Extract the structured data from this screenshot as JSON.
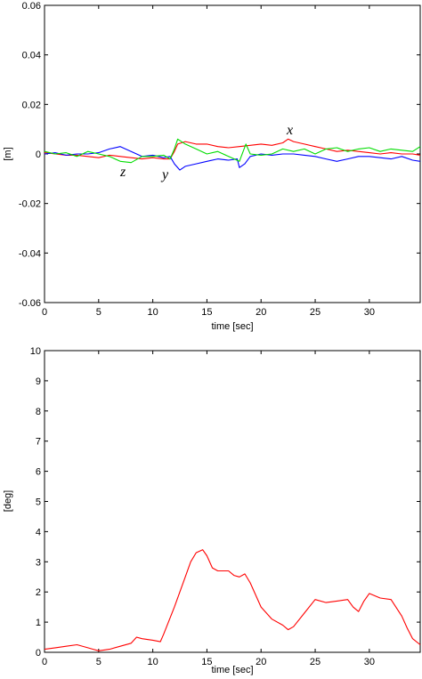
{
  "chart_data": [
    {
      "type": "line",
      "xlabel": "time [sec]",
      "ylabel": "[m]",
      "xlim": [
        0,
        34.7
      ],
      "ylim": [
        -0.06,
        0.06
      ],
      "xticks": [
        0,
        5,
        10,
        15,
        20,
        25,
        30
      ],
      "yticks": [
        -0.06,
        -0.04,
        -0.02,
        0,
        0.02,
        0.04,
        0.06
      ],
      "ytick_labels": [
        "-0.06",
        "-0.04",
        "-0.02",
        "0",
        "0.02",
        "0.04",
        "0.06"
      ],
      "grid": false,
      "legend": "none",
      "series": [
        {
          "name": "x",
          "color": "#ff0000",
          "x": [
            0,
            1,
            2,
            3,
            4,
            5,
            6,
            7,
            8,
            9,
            10,
            11,
            11.6,
            12,
            12.3,
            13,
            14,
            15,
            16,
            17,
            18,
            19,
            20,
            21,
            22,
            22.5,
            23,
            24,
            25,
            26,
            27,
            28,
            29,
            30,
            31,
            32,
            33,
            34,
            34.7
          ],
          "y": [
            0.0005,
            0,
            -0.0005,
            -0.0005,
            -0.001,
            -0.0015,
            -0.0005,
            -0.001,
            -0.0015,
            -0.002,
            -0.0015,
            -0.002,
            -0.002,
            0.001,
            0.004,
            0.005,
            0.004,
            0.004,
            0.003,
            0.0025,
            0.003,
            0.0035,
            0.004,
            0.0035,
            0.0045,
            0.006,
            0.005,
            0.004,
            0.003,
            0.002,
            0.001,
            0.0015,
            0.001,
            0.0005,
            0,
            0.0005,
            0,
            0,
            -0.0005
          ]
        },
        {
          "name": "y",
          "color": "#0000ff",
          "x": [
            0,
            1,
            2,
            3,
            4,
            5,
            6,
            7,
            8,
            9,
            10,
            11,
            11.6,
            12,
            12.5,
            13,
            14,
            15,
            16,
            17,
            17.8,
            18,
            18.5,
            19,
            20,
            21,
            22,
            23,
            24,
            25,
            26,
            27,
            28,
            29,
            30,
            31,
            32,
            33,
            34,
            34.7
          ],
          "y": [
            0,
            0.0005,
            -0.0005,
            0,
            0,
            0.0005,
            0.002,
            0.003,
            0.001,
            -0.001,
            -0.0005,
            -0.0015,
            -0.001,
            -0.004,
            -0.0065,
            -0.005,
            -0.004,
            -0.003,
            -0.002,
            -0.0025,
            -0.002,
            -0.0055,
            -0.004,
            -0.001,
            0,
            -0.0005,
            0,
            0,
            -0.0005,
            -0.001,
            -0.002,
            -0.003,
            -0.002,
            -0.001,
            -0.001,
            -0.0015,
            -0.002,
            -0.001,
            -0.0025,
            -0.003
          ]
        },
        {
          "name": "z",
          "color": "#00dd00",
          "x": [
            0,
            1,
            2,
            3,
            4,
            5,
            6,
            7,
            8,
            9,
            10,
            11,
            11.6,
            12,
            12.3,
            13,
            14,
            15,
            16,
            17,
            18,
            18.6,
            19,
            20,
            21,
            22,
            23,
            24,
            25,
            26,
            27,
            28,
            29,
            30,
            31,
            32,
            33,
            34,
            34.7
          ],
          "y": [
            0.001,
            0,
            0.0005,
            -0.001,
            0.001,
            0,
            -0.001,
            -0.003,
            -0.0035,
            -0.001,
            -0.001,
            -0.0005,
            -0.002,
            0.002,
            0.006,
            0.004,
            0.002,
            0,
            0.001,
            -0.001,
            -0.003,
            0.004,
            0,
            -0.0005,
            0,
            0.002,
            0.001,
            0.002,
            0,
            0.002,
            0.0025,
            0.001,
            0.002,
            0.0025,
            0.001,
            0.002,
            0.0015,
            0.001,
            0.003
          ]
        }
      ],
      "annotations": [
        "x",
        "y",
        "z"
      ]
    },
    {
      "type": "line",
      "xlabel": "time [sec]",
      "ylabel": "[deg]",
      "xlim": [
        0,
        34.7
      ],
      "ylim": [
        0,
        10
      ],
      "xticks": [
        0,
        5,
        10,
        15,
        20,
        25,
        30
      ],
      "yticks": [
        0,
        1,
        2,
        3,
        4,
        5,
        6,
        7,
        8,
        9,
        10
      ],
      "grid": false,
      "legend": "none",
      "series": [
        {
          "color": "#ff0000",
          "x": [
            0,
            1,
            2,
            3,
            4,
            4.5,
            5,
            6,
            7,
            8,
            8.5,
            9,
            10,
            10.7,
            11,
            12,
            13,
            13.5,
            14,
            14.6,
            15,
            15.5,
            16,
            17,
            17.5,
            18,
            18.5,
            19,
            20,
            21,
            22,
            22.5,
            23,
            24,
            25,
            26,
            27,
            28,
            28.5,
            29,
            29.5,
            30,
            31,
            32,
            33,
            33.5,
            34,
            34.7
          ],
          "y": [
            0.1,
            0.15,
            0.2,
            0.25,
            0.15,
            0.1,
            0.05,
            0.1,
            0.2,
            0.3,
            0.5,
            0.45,
            0.4,
            0.35,
            0.6,
            1.5,
            2.5,
            3,
            3.3,
            3.4,
            3.2,
            2.8,
            2.7,
            2.7,
            2.55,
            2.5,
            2.6,
            2.3,
            1.5,
            1.1,
            0.9,
            0.75,
            0.85,
            1.3,
            1.75,
            1.65,
            1.7,
            1.75,
            1.5,
            1.35,
            1.7,
            1.95,
            1.8,
            1.75,
            1.2,
            0.8,
            0.45,
            0.25
          ]
        }
      ]
    }
  ]
}
